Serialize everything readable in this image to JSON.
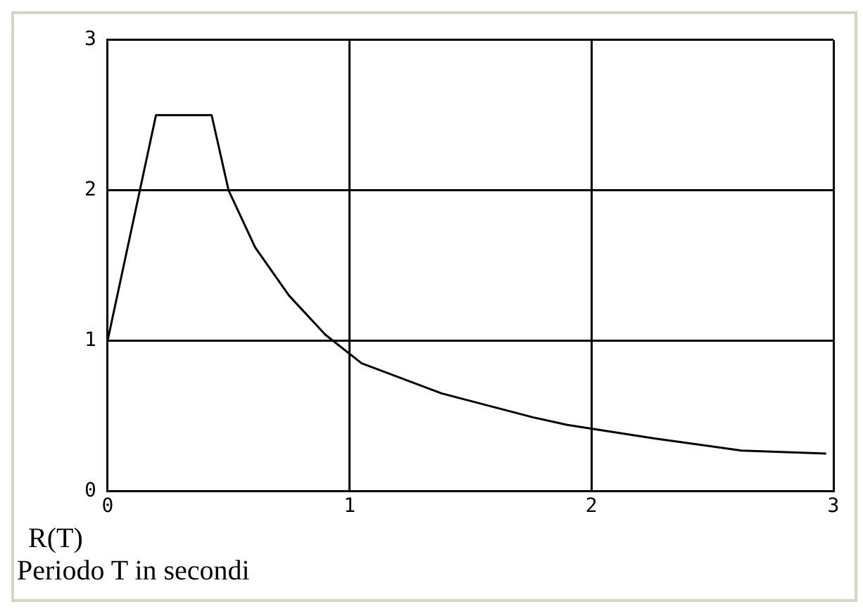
{
  "chart_data": {
    "type": "line",
    "xlabel": "Periodo T in secondi",
    "ylabel": "R(T)",
    "series": [
      {
        "color": "#000000",
        "x": [
          0,
          0.2,
          0.43,
          0.5,
          0.61,
          0.75,
          0.9,
          1.05,
          1.38,
          1.76,
          1.9,
          2.26,
          2.62,
          2.97
        ],
        "values": [
          1,
          2.5,
          2.5,
          2.0,
          1.62,
          1.3,
          1.04,
          0.85,
          0.65,
          0.49,
          0.44,
          0.35,
          0.27,
          0.25
        ]
      }
    ],
    "xlim": [
      0,
      3
    ],
    "ylim": [
      0,
      3
    ],
    "xticks": [
      0,
      1,
      2,
      3
    ],
    "yticks": [
      0,
      1,
      2,
      3
    ],
    "grid": true,
    "legend": false,
    "marker": "none",
    "line_style": "solid"
  }
}
